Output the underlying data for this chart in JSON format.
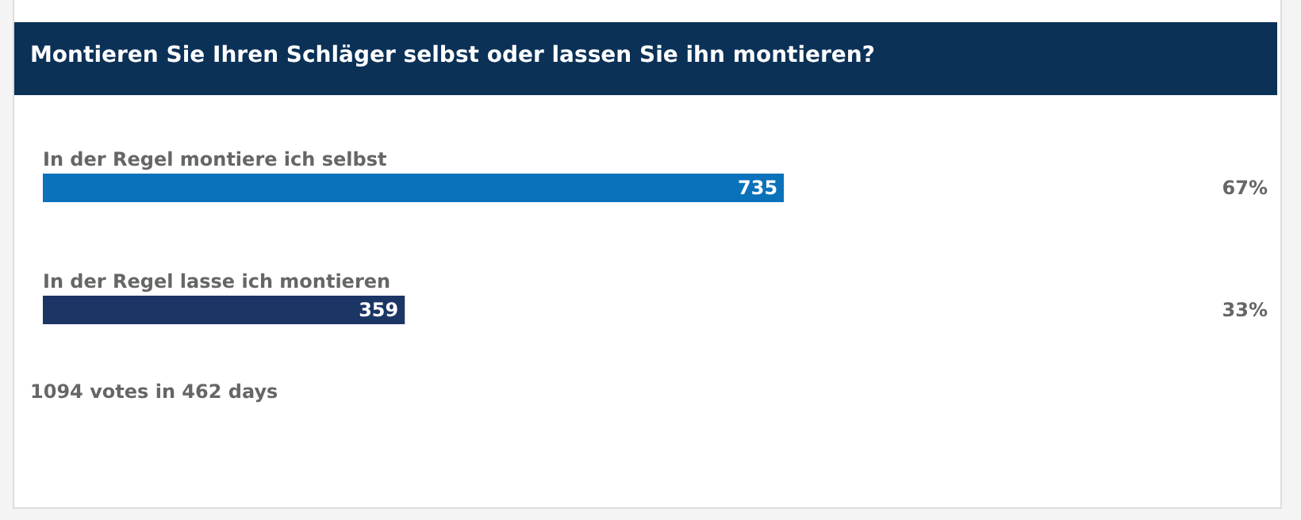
{
  "chart_data": {
    "type": "bar",
    "orientation": "horizontal",
    "title": "Montieren Sie Ihren Schläger selbst oder lassen Sie ihn montieren?",
    "categories": [
      "In der Regel montiere ich selbst",
      "In der Regel lasse ich montieren"
    ],
    "values": [
      735,
      359
    ],
    "colors": [
      "#0a72ba",
      "#1b3564"
    ],
    "data_labels": true,
    "annotations": [
      "67%",
      "33%",
      "1094 votes in 462 days"
    ]
  }
}
